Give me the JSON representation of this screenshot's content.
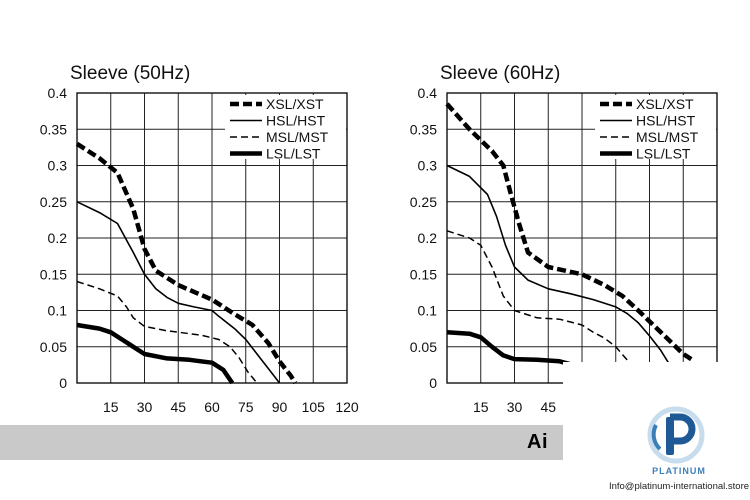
{
  "chart_data": [
    {
      "type": "line",
      "title": "Sleeve (50Hz)",
      "xlabel": "",
      "ylabel": "",
      "xlim": [
        0,
        120
      ],
      "ylim": [
        0,
        0.4
      ],
      "grid": true,
      "x_ticks": [
        15,
        30,
        45,
        60,
        75,
        90,
        105,
        120
      ],
      "x_tick_labels": [
        "15",
        "30",
        "45",
        "60",
        "75",
        "90",
        "105",
        "120"
      ],
      "y_ticks": [
        0,
        0.05,
        0.1,
        0.15,
        0.2,
        0.25,
        0.3,
        0.35,
        0.4
      ],
      "y_tick_labels": [
        "0",
        "0.05",
        "0.1",
        "0.15",
        "0.2",
        "0.25",
        "0.3",
        "0.35",
        "0.4"
      ],
      "legend_position": "top-right",
      "series": [
        {
          "name": "XSL/XST",
          "style": "heavy-dash",
          "x": [
            0,
            10,
            18,
            25,
            30,
            35,
            45,
            60,
            70,
            78,
            85,
            90,
            95,
            97
          ],
          "y": [
            0.33,
            0.31,
            0.29,
            0.24,
            0.185,
            0.155,
            0.135,
            0.115,
            0.095,
            0.08,
            0.055,
            0.03,
            0.01,
            0
          ]
        },
        {
          "name": "HSL/HST",
          "style": "solid",
          "x": [
            0,
            10,
            18,
            25,
            30,
            35,
            40,
            45,
            52,
            60,
            63,
            70,
            75,
            80,
            85,
            90
          ],
          "y": [
            0.25,
            0.235,
            0.22,
            0.18,
            0.15,
            0.13,
            0.118,
            0.11,
            0.105,
            0.1,
            0.092,
            0.075,
            0.06,
            0.04,
            0.02,
            0
          ]
        },
        {
          "name": "MSL/MST",
          "style": "thin-dash",
          "x": [
            0,
            10,
            18,
            22,
            25,
            30,
            40,
            55,
            63,
            68,
            72,
            76,
            80
          ],
          "y": [
            0.14,
            0.13,
            0.12,
            0.105,
            0.09,
            0.078,
            0.072,
            0.066,
            0.06,
            0.05,
            0.035,
            0.015,
            0
          ]
        },
        {
          "name": "LSL/LST",
          "style": "thick",
          "x": [
            0,
            10,
            15,
            20,
            25,
            30,
            40,
            50,
            55,
            60,
            65,
            69
          ],
          "y": [
            0.08,
            0.075,
            0.07,
            0.06,
            0.05,
            0.04,
            0.034,
            0.032,
            0.03,
            0.028,
            0.018,
            0
          ]
        }
      ]
    },
    {
      "type": "line",
      "title": "Sleeve (60Hz)",
      "xlabel": "",
      "ylabel": "",
      "xlim": [
        0,
        120
      ],
      "ylim": [
        0,
        0.4
      ],
      "grid": true,
      "x_ticks": [
        15,
        30,
        45
      ],
      "x_tick_labels": [
        "15",
        "30",
        "45"
      ],
      "y_ticks": [
        0,
        0.05,
        0.1,
        0.15,
        0.2,
        0.25,
        0.3,
        0.35,
        0.4
      ],
      "y_tick_labels": [
        "0",
        "0.05",
        "0.1",
        "0.15",
        "0.2",
        "0.25",
        "0.3",
        "0.35",
        "0.4"
      ],
      "legend_position": "top-right",
      "series": [
        {
          "name": "XSL/XST",
          "style": "heavy-dash",
          "x": [
            0,
            10,
            20,
            25,
            28,
            32,
            36,
            45,
            60,
            70,
            78,
            85,
            95,
            105,
            110
          ],
          "y": [
            0.385,
            0.35,
            0.32,
            0.3,
            0.265,
            0.22,
            0.18,
            0.16,
            0.15,
            0.135,
            0.12,
            0.1,
            0.07,
            0.04,
            0.03
          ]
        },
        {
          "name": "HSL/HST",
          "style": "solid",
          "x": [
            0,
            10,
            18,
            22,
            26,
            30,
            36,
            45,
            55,
            65,
            75,
            80,
            85,
            90,
            95,
            100
          ],
          "y": [
            0.3,
            0.285,
            0.26,
            0.23,
            0.19,
            0.16,
            0.142,
            0.13,
            0.123,
            0.115,
            0.105,
            0.096,
            0.083,
            0.065,
            0.045,
            0.02
          ]
        },
        {
          "name": "MSL/MST",
          "style": "thin-dash",
          "x": [
            0,
            10,
            15,
            20,
            25,
            30,
            40,
            50,
            60,
            65,
            70,
            75,
            80,
            85
          ],
          "y": [
            0.21,
            0.2,
            0.19,
            0.16,
            0.12,
            0.1,
            0.09,
            0.088,
            0.08,
            0.07,
            0.062,
            0.05,
            0.032,
            0.01
          ]
        },
        {
          "name": "LSL/LST",
          "style": "thick",
          "x": [
            0,
            10,
            15,
            20,
            25,
            30,
            40,
            50,
            56
          ],
          "y": [
            0.07,
            0.068,
            0.063,
            0.05,
            0.038,
            0.033,
            0.032,
            0.03,
            0.025
          ]
        }
      ]
    }
  ],
  "banner": {
    "text": "Ai"
  },
  "logo": {
    "name": "PLATINUM",
    "email": "Info@platinum-international.store"
  },
  "colors": {
    "band": "#c9c9c9",
    "logo_blue": "#3b7fb9",
    "logo_dark": "#1f5a96"
  }
}
